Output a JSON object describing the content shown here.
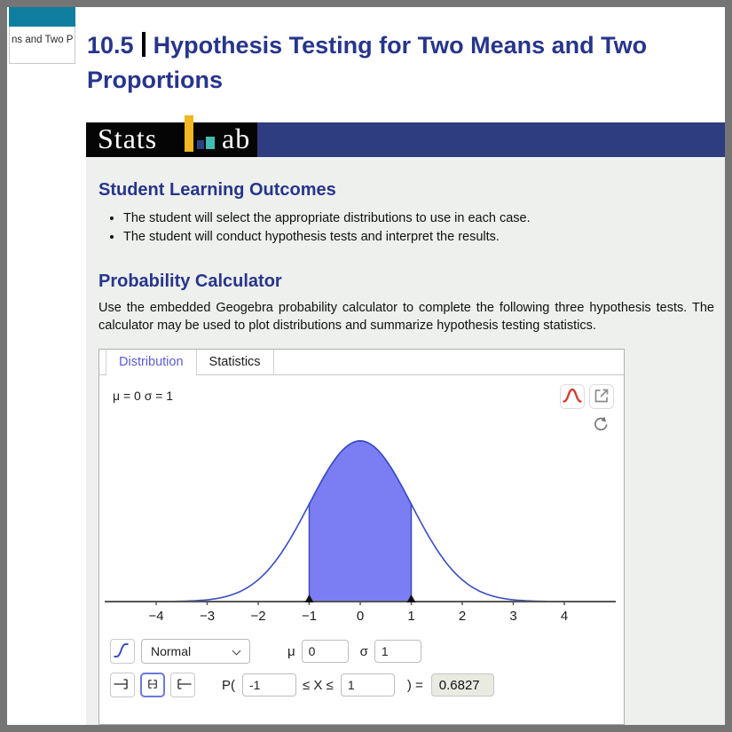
{
  "colors": {
    "accent_navy": "#27358b",
    "banner_navy": "#2e3d7f",
    "logo_yellow": "#f2b722",
    "logo_teal": "#3fbdb4",
    "browser_tab_teal": "#107f9f",
    "active_tab_blue": "#5c5cd9",
    "pdf_icon_red": "#d63a2f"
  },
  "browser_tab": {
    "label": "ns and Two P"
  },
  "header": {
    "chapter": "10.5",
    "title": "Hypothesis Testing for Two Means and Two Proportions"
  },
  "logo": {
    "left": "Stats",
    "right": "ab"
  },
  "outcomes": {
    "heading": "Student Learning Outcomes",
    "bullets": [
      "The student will select the appropriate distributions to use in each case.",
      "The student will conduct hypothesis tests and interpret the results."
    ]
  },
  "calculator": {
    "heading": "Probability Calculator",
    "description": "Use the embedded Geogebra probability calculator to complete the following three hypothesis tests. The calculator may be used to plot distributions and summarize hypothesis testing statistics."
  },
  "widget": {
    "tabs": [
      {
        "label": "Distribution"
      },
      {
        "label": "Statistics"
      }
    ],
    "params_label": "μ = 0 σ = 1",
    "distribution_select": {
      "value": "Normal"
    },
    "mu": {
      "label": "μ",
      "value": "0"
    },
    "sigma": {
      "label": "σ",
      "value": "1"
    },
    "probability": {
      "prefix": "P(",
      "lower": "-1",
      "relation": "≤ X ≤",
      "upper": "1",
      "suffix": ") =",
      "result": "0.6827"
    },
    "icons": {
      "pdf_mode": "bell-curve-icon",
      "open_external": "open-external-icon",
      "refresh": "refresh-icon",
      "cdf_mode": "sigmoid-curve-icon",
      "interval_left": "interval-left-icon",
      "interval_between": "interval-between-icon",
      "interval_right": "interval-right-icon",
      "dropdown": "chevron-down-icon"
    }
  },
  "chart_data": {
    "type": "area",
    "subtype": "normal-distribution-pdf",
    "mu": 0,
    "sigma": 1,
    "x_range": [
      -5,
      5
    ],
    "x_ticks": [
      -4,
      -3,
      -2,
      -1,
      0,
      1,
      2,
      3,
      4
    ],
    "shaded_interval": [
      -1,
      1
    ],
    "shaded_probability": 0.6827,
    "y_max_pdf": 0.3989,
    "curve_color": "#3a4cc4",
    "fill_color": "#7b7ef2",
    "axis_color": "#555555",
    "grid": false,
    "legend": "none"
  }
}
